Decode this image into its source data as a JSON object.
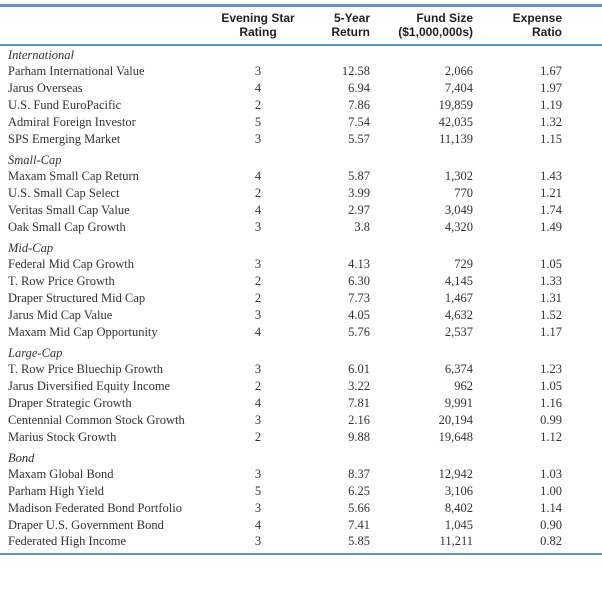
{
  "colors": {
    "accent_rule": "#5e93c5",
    "body_text": "#32323c",
    "header_text": "#1f1f23"
  },
  "table": {
    "headers": [
      {
        "line1": "Evening Star",
        "line2": "Rating"
      },
      {
        "line1": "5-Year",
        "line2": "Return"
      },
      {
        "line1": "Fund Size",
        "line2": "($1,000,000s)"
      },
      {
        "line1": "Expense",
        "line2": "Ratio"
      }
    ],
    "sections": [
      {
        "category": "International",
        "rows": [
          {
            "name": "Parham International Value",
            "rating": "3",
            "return_5yr": "12.58",
            "fund_size": "2,066",
            "expense_ratio": "1.67"
          },
          {
            "name": "Jarus Overseas",
            "rating": "4",
            "return_5yr": "6.94",
            "fund_size": "7,404",
            "expense_ratio": "1.97"
          },
          {
            "name": "U.S. Fund EuroPacific",
            "rating": "2",
            "return_5yr": "7.86",
            "fund_size": "19,859",
            "expense_ratio": "1.19"
          },
          {
            "name": "Admiral Foreign Investor",
            "rating": "5",
            "return_5yr": "7.54",
            "fund_size": "42,035",
            "expense_ratio": "1.32"
          },
          {
            "name": "SPS Emerging Market",
            "rating": "3",
            "return_5yr": "5.57",
            "fund_size": "11,139",
            "expense_ratio": "1.15"
          }
        ]
      },
      {
        "category": "Small-Cap",
        "rows": [
          {
            "name": "Maxam Small Cap Return",
            "rating": "4",
            "return_5yr": "5.87",
            "fund_size": "1,302",
            "expense_ratio": "1.43"
          },
          {
            "name": "U.S. Small Cap Select",
            "rating": "2",
            "return_5yr": "3.99",
            "fund_size": "770",
            "expense_ratio": "1.21"
          },
          {
            "name": "Veritas Small Cap Value",
            "rating": "4",
            "return_5yr": "2.97",
            "fund_size": "3,049",
            "expense_ratio": "1.74"
          },
          {
            "name": "Oak Small Cap Growth",
            "rating": "3",
            "return_5yr": "3.8",
            "fund_size": "4,320",
            "expense_ratio": "1.49"
          }
        ]
      },
      {
        "category": "Mid-Cap",
        "rows": [
          {
            "name": "Federal Mid Cap Growth",
            "rating": "3",
            "return_5yr": "4.13",
            "fund_size": "729",
            "expense_ratio": "1.05"
          },
          {
            "name": "T. Row Price Growth",
            "rating": "2",
            "return_5yr": "6.30",
            "fund_size": "4,145",
            "expense_ratio": "1.33"
          },
          {
            "name": "Draper Structured Mid Cap",
            "rating": "2",
            "return_5yr": "7.73",
            "fund_size": "1,467",
            "expense_ratio": "1.31"
          },
          {
            "name": "Jarus Mid Cap Value",
            "rating": "3",
            "return_5yr": "4.05",
            "fund_size": "4,632",
            "expense_ratio": "1.52"
          },
          {
            "name": "Maxam Mid Cap Opportunity",
            "rating": "4",
            "return_5yr": "5.76",
            "fund_size": "2,537",
            "expense_ratio": "1.17"
          }
        ]
      },
      {
        "category": "Large-Cap",
        "rows": [
          {
            "name": "T. Row Price Bluechip Growth",
            "rating": "3",
            "return_5yr": "6.01",
            "fund_size": "6,374",
            "expense_ratio": "1.23"
          },
          {
            "name": "Jarus Diversified Equity Income",
            "rating": "2",
            "return_5yr": "3.22",
            "fund_size": "962",
            "expense_ratio": "1.05"
          },
          {
            "name": "Draper Strategic Growth",
            "rating": "4",
            "return_5yr": "7.81",
            "fund_size": "9,991",
            "expense_ratio": "1.16"
          },
          {
            "name": "Centennial Common Stock Growth",
            "rating": "3",
            "return_5yr": "2.16",
            "fund_size": "20,194",
            "expense_ratio": "0.99"
          },
          {
            "name": "Marius Stock Growth",
            "rating": "2",
            "return_5yr": "9.88",
            "fund_size": "19,648",
            "expense_ratio": "1.12"
          }
        ]
      },
      {
        "category": "Bond",
        "rows": [
          {
            "name": "Maxam Global Bond",
            "rating": "3",
            "return_5yr": "8.37",
            "fund_size": "12,942",
            "expense_ratio": "1.03"
          },
          {
            "name": "Parham High Yield",
            "rating": "5",
            "return_5yr": "6.25",
            "fund_size": "3,106",
            "expense_ratio": "1.00"
          },
          {
            "name": "Madison Federated Bond Portfolio",
            "rating": "3",
            "return_5yr": "5.66",
            "fund_size": "8,402",
            "expense_ratio": "1.14"
          },
          {
            "name": "Draper U.S. Government Bond",
            "rating": "4",
            "return_5yr": "7.41",
            "fund_size": "1,045",
            "expense_ratio": "0.90"
          },
          {
            "name": "Federated High Income",
            "rating": "3",
            "return_5yr": "5.85",
            "fund_size": "11,211",
            "expense_ratio": "0.82"
          }
        ]
      }
    ]
  }
}
